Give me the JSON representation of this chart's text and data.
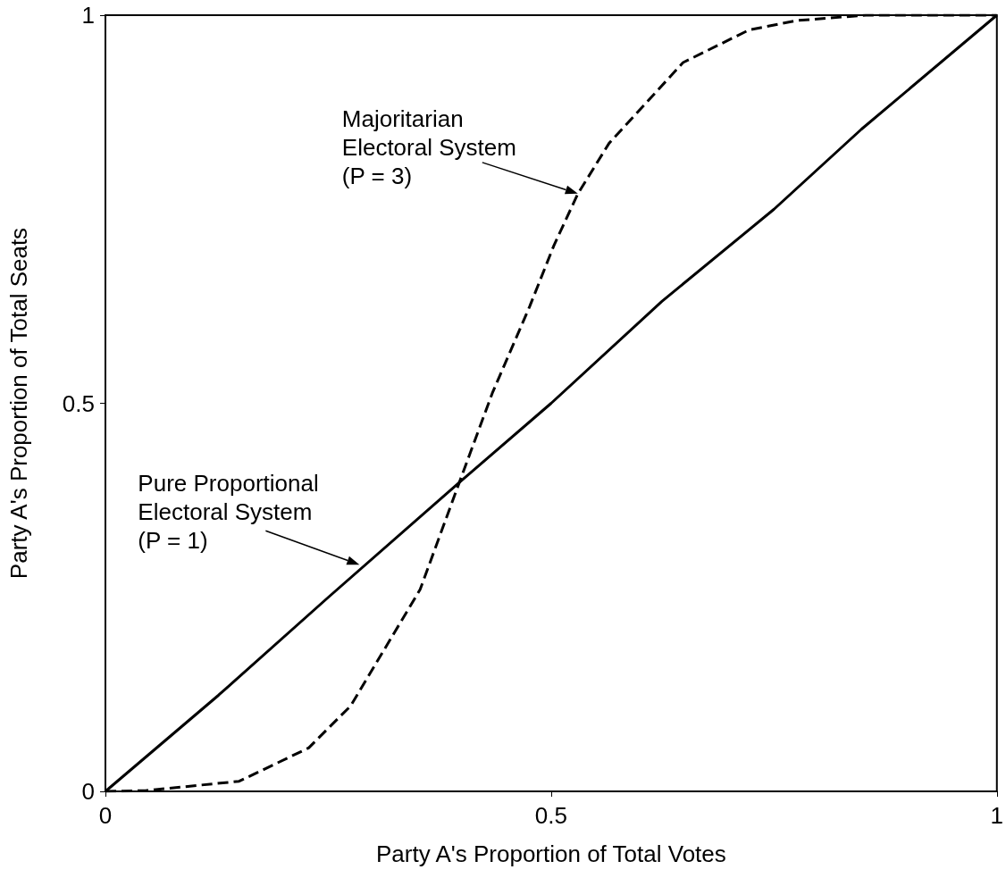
{
  "chart_data": {
    "type": "line",
    "xlabel": "Party A's Proportion of Total Votes",
    "ylabel": "Party A's Proportion of Total Seats",
    "xlim": [
      0,
      1
    ],
    "ylim": [
      0,
      1
    ],
    "xticks": [
      0,
      0.5,
      1
    ],
    "yticks": [
      0,
      0.5,
      1
    ],
    "grid": false,
    "marker": "none",
    "series": [
      {
        "color": "#000000",
        "line_style": "solid",
        "x": [
          0,
          0.127,
          0.25,
          0.397,
          0.5,
          0.624,
          0.75,
          0.848,
          1
        ],
        "values": [
          0,
          0.124,
          0.25,
          0.398,
          0.5,
          0.631,
          0.75,
          0.853,
          1
        ]
      },
      {
        "color": "#000000",
        "line_style": "dashed",
        "x": [
          0,
          0.045,
          0.15,
          0.228,
          0.275,
          0.353,
          0.397,
          0.434,
          0.476,
          0.503,
          0.53,
          0.565,
          0.648,
          0.722,
          0.775,
          0.853,
          1
        ],
        "values": [
          0,
          0.001,
          0.013,
          0.056,
          0.11,
          0.26,
          0.398,
          0.513,
          0.625,
          0.703,
          0.77,
          0.835,
          0.939,
          0.981,
          0.993,
          1,
          1
        ]
      }
    ],
    "annotations": [
      {
        "text": "Majoritarian\nElectoral System\n(P = 3)",
        "x": 0.53,
        "y": 0.77
      },
      {
        "text": "Pure Proportional\nElectoral System\n(P = 1)",
        "x": 0.285,
        "y": 0.292
      }
    ]
  }
}
